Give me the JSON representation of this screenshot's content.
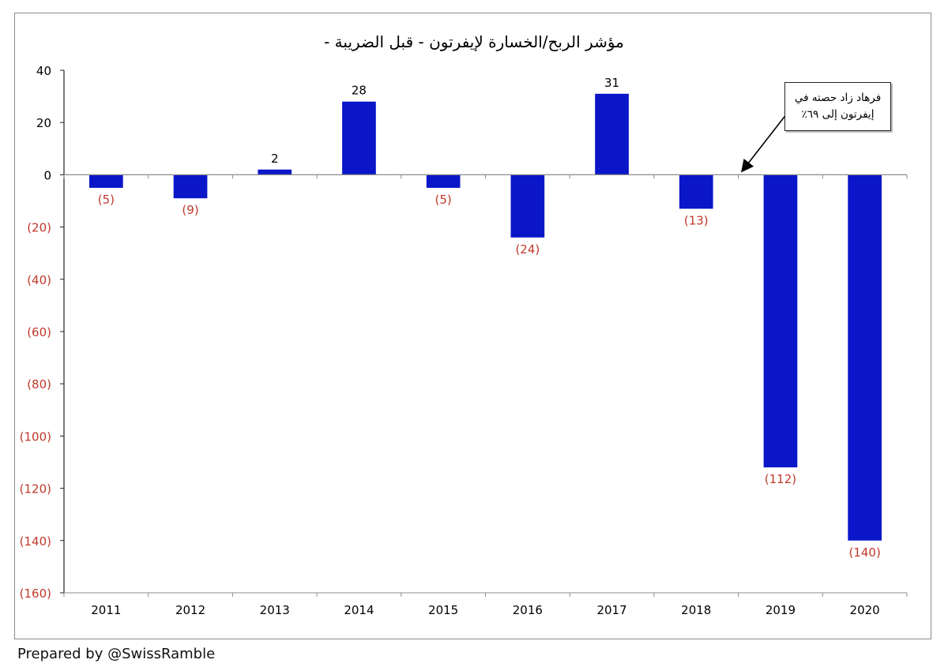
{
  "colors": {
    "bar": "#0a16c8",
    "negative_label": "#c0392b",
    "positive_label": "#000000",
    "axis": "#222222",
    "gridline": "#8c8c8c"
  },
  "footer": {
    "credit": "Prepared by @SwissRamble"
  },
  "annotation": {
    "line1": "فرهاد زاد حصته في",
    "line2": "إيفرتون إلى ٦٩٪"
  },
  "chart_data": {
    "type": "bar",
    "title": "مؤشر الربح/الخسارة لإيفرتون - قبل الضريبة -",
    "xlabel": "",
    "ylabel": "",
    "ylim": [
      -160,
      40
    ],
    "y_ticks": [
      40,
      20,
      0,
      -20,
      -40,
      -60,
      -80,
      -100,
      -120,
      -140,
      -160
    ],
    "y_tick_labels": [
      "40",
      "20",
      "0",
      "(20)",
      "(40)",
      "(60)",
      "(80)",
      "(100)",
      "(120)",
      "(140)",
      "(160)"
    ],
    "categories": [
      "2011",
      "2012",
      "2013",
      "2014",
      "2015",
      "2016",
      "2017",
      "2018",
      "2019",
      "2020"
    ],
    "values": [
      -5,
      -9,
      2,
      28,
      -5,
      -24,
      31,
      -13,
      -112,
      -140
    ],
    "value_labels": [
      "(5)",
      "(9)",
      "2",
      "28",
      "(5)",
      "(24)",
      "31",
      "(13)",
      "(112)",
      "(140)"
    ],
    "grid": false,
    "legend": "none"
  }
}
